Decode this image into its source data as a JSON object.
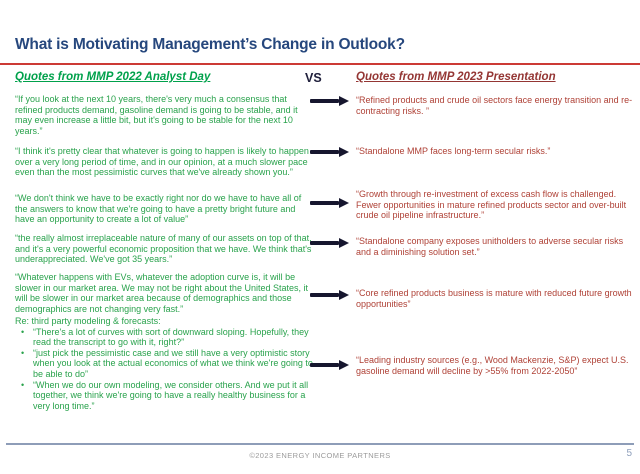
{
  "slide": {
    "title": "What is Motivating Management’s Change in Outlook?",
    "vs_label": "VS",
    "page_number": "5",
    "footer": "©2023 ENERGY INCOME PARTNERS",
    "left": {
      "header": "Quotes from MMP 2022 Analyst Day",
      "quotes": [
        "“If you look at the next 10 years, there's very much a consensus that refined products demand, gasoline demand is going to be stable, and it may even increase a little bit, but it's going to be stable for the next 10 years.”",
        "“I think it's pretty clear that whatever is going to happen is likely to happen over a very long period of time, and in our opinion, at a much slower pace even than the most pessimistic curves that we've already shown you.”",
        "“We don't think we have to be exactly right nor do we have to have all of the answers to know that we're going to have a pretty bright future and have an opportunity to create a lot of value”",
        "“the really almost irreplaceable nature of many of our assets on top of that, and it's a very powerful economic proposition that we have. We think that's underappreciated. We've got 35 years.”",
        "“Whatever happens with EVs, whatever the adoption curve is, it will be slower in our market area. We may not be right about the United States, it will be slower in our market area because of demographics and those demographics are not changing very fast.”"
      ],
      "forecast_intro": "Re: third party modeling & forecasts:",
      "forecast_bullets": [
        "“There's a lot of curves with sort of downward sloping. Hopefully, they read the transcript to go with it, right?”",
        "“just pick the pessimistic case and we still have a very optimistic story when you look at the actual economics of what we think we're going to be able to do”",
        "“When we do our own modeling, we consider others. And we put it all together, we think we're going to have a really healthy business for a very long time.”"
      ]
    },
    "right": {
      "header": "Quotes from MMP 2023 Presentation",
      "quotes": [
        "“Refined products and crude oil sectors face energy transition and re-contracting risks. ”",
        "“Standalone MMP faces long-term secular risks.”",
        "“Growth through re-investment of excess cash flow is challenged. Fewer opportunities in mature refined products sector and over-built crude oil pipeline infrastructure.”",
        "“Standalone company exposes unitholders to adverse secular risks and a diminishing solution set.”",
        "“Core refined products business is mature with reduced future growth opportunities”",
        "“Leading industry sources (e.g., Wood Mackenzie, S&P) expect U.S. gasoline demand will decline by >55% from 2022-2050”"
      ]
    },
    "colors": {
      "title": "#26477D",
      "divider": "#CC3A35",
      "green_header": "#00A14B",
      "green": "#29A24C",
      "dark_red_header": "#943634",
      "dark_red": "#AF4136",
      "vs": "#20203C",
      "arrow": "#16162E",
      "footer_line": "#8E9DB8",
      "footer_text": "#9B9B9B",
      "page_number": "#8FA0BC"
    }
  }
}
